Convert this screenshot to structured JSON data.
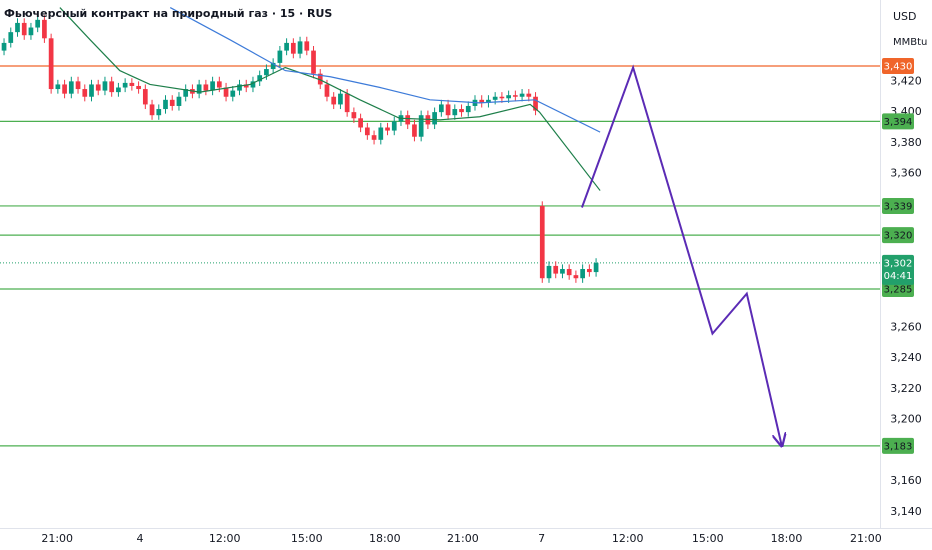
{
  "chart_data": {
    "type": "candlestick",
    "title": "Фьючерсный контракт на природный газ · 15 · RUS",
    "currency": "USD",
    "unit": "MMBtu",
    "xlim": [
      -0.6,
      130.2
    ],
    "ylim": [
      3.1296,
      3.4729
    ],
    "xticks": [
      {
        "value": 7.9,
        "label": "21:00"
      },
      {
        "value": 20.2,
        "label": "4"
      },
      {
        "value": 32.8,
        "label": "12:00"
      },
      {
        "value": 45.0,
        "label": "15:00"
      },
      {
        "value": 56.6,
        "label": "18:00"
      },
      {
        "value": 68.2,
        "label": "21:00"
      },
      {
        "value": 79.9,
        "label": "7"
      },
      {
        "value": 92.7,
        "label": "12:00"
      },
      {
        "value": 104.6,
        "label": "15:00"
      },
      {
        "value": 116.3,
        "label": "18:00"
      },
      {
        "value": 128.1,
        "label": "21:00"
      }
    ],
    "yticks": [
      {
        "value": 3.42,
        "label": "3,420"
      },
      {
        "value": 3.4,
        "label": "3,400"
      },
      {
        "value": 3.38,
        "label": "3,380"
      },
      {
        "value": 3.36,
        "label": "3,360"
      },
      {
        "value": 3.26,
        "label": "3,260"
      },
      {
        "value": 3.24,
        "label": "3,240"
      },
      {
        "value": 3.22,
        "label": "3,220"
      },
      {
        "value": 3.2,
        "label": "3,200"
      },
      {
        "value": 3.16,
        "label": "3,160"
      },
      {
        "value": 3.14,
        "label": "3,140"
      }
    ],
    "up_color": "#089981",
    "down_color": "#f23645",
    "open": [
      3.44,
      3.445,
      3.452,
      3.458,
      3.45,
      3.455,
      3.46,
      3.448,
      3.415,
      3.418,
      3.412,
      3.42,
      3.415,
      3.41,
      3.418,
      3.414,
      3.42,
      3.413,
      3.416,
      3.419,
      3.417,
      3.415,
      3.405,
      3.398,
      3.402,
      3.408,
      3.404,
      3.41,
      3.415,
      3.412,
      3.418,
      3.414,
      3.42,
      3.416,
      3.41,
      3.414,
      3.418,
      3.416,
      3.42,
      3.424,
      3.428,
      3.432,
      3.44,
      3.445,
      3.438,
      3.446,
      3.44,
      3.425,
      3.418,
      3.41,
      3.405,
      3.412,
      3.4,
      3.396,
      3.39,
      3.385,
      3.382,
      3.39,
      3.388,
      3.394,
      3.398,
      3.392,
      3.384,
      3.398,
      3.392,
      3.4,
      3.405,
      3.398,
      3.402,
      3.4,
      3.404,
      3.408,
      3.406,
      3.408,
      3.41,
      3.409,
      3.411,
      3.41,
      3.412,
      3.41,
      3.339,
      3.292,
      3.3,
      3.295,
      3.298,
      3.294,
      3.292,
      3.298,
      3.296
    ],
    "high": [
      3.448,
      3.455,
      3.461,
      3.461,
      3.458,
      3.463,
      3.463,
      3.451,
      3.421,
      3.421,
      3.423,
      3.423,
      3.418,
      3.421,
      3.421,
      3.423,
      3.423,
      3.419,
      3.422,
      3.422,
      3.42,
      3.418,
      3.408,
      3.405,
      3.411,
      3.411,
      3.413,
      3.418,
      3.418,
      3.421,
      3.421,
      3.423,
      3.423,
      3.419,
      3.417,
      3.421,
      3.421,
      3.423,
      3.427,
      3.431,
      3.435,
      3.443,
      3.448,
      3.448,
      3.449,
      3.449,
      3.443,
      3.428,
      3.421,
      3.413,
      3.415,
      3.415,
      3.403,
      3.399,
      3.393,
      3.388,
      3.393,
      3.393,
      3.397,
      3.401,
      3.401,
      3.395,
      3.401,
      3.401,
      3.403,
      3.408,
      3.408,
      3.405,
      3.405,
      3.407,
      3.411,
      3.411,
      3.411,
      3.413,
      3.413,
      3.414,
      3.414,
      3.415,
      3.415,
      3.413,
      3.342,
      3.303,
      3.303,
      3.301,
      3.301,
      3.297,
      3.301,
      3.301,
      3.305
    ],
    "low": [
      3.437,
      3.442,
      3.449,
      3.447,
      3.447,
      3.452,
      3.445,
      3.412,
      3.412,
      3.409,
      3.409,
      3.412,
      3.407,
      3.407,
      3.411,
      3.411,
      3.41,
      3.41,
      3.413,
      3.414,
      3.412,
      3.402,
      3.395,
      3.395,
      3.399,
      3.401,
      3.401,
      3.407,
      3.409,
      3.409,
      3.411,
      3.411,
      3.413,
      3.407,
      3.407,
      3.411,
      3.413,
      3.413,
      3.417,
      3.421,
      3.425,
      3.429,
      3.437,
      3.435,
      3.435,
      3.437,
      3.422,
      3.415,
      3.407,
      3.402,
      3.402,
      3.397,
      3.393,
      3.387,
      3.382,
      3.379,
      3.379,
      3.385,
      3.385,
      3.391,
      3.389,
      3.381,
      3.381,
      3.389,
      3.389,
      3.397,
      3.395,
      3.395,
      3.397,
      3.397,
      3.401,
      3.403,
      3.403,
      3.405,
      3.406,
      3.406,
      3.407,
      3.407,
      3.407,
      3.398,
      3.289,
      3.289,
      3.292,
      3.292,
      3.291,
      3.289,
      3.289,
      3.293,
      3.293
    ],
    "close": [
      3.445,
      3.452,
      3.458,
      3.45,
      3.455,
      3.46,
      3.448,
      3.415,
      3.418,
      3.412,
      3.42,
      3.415,
      3.41,
      3.418,
      3.414,
      3.42,
      3.413,
      3.416,
      3.419,
      3.417,
      3.415,
      3.405,
      3.398,
      3.402,
      3.408,
      3.404,
      3.41,
      3.415,
      3.412,
      3.418,
      3.414,
      3.42,
      3.416,
      3.41,
      3.414,
      3.418,
      3.416,
      3.42,
      3.424,
      3.428,
      3.432,
      3.44,
      3.445,
      3.438,
      3.446,
      3.44,
      3.425,
      3.418,
      3.41,
      3.405,
      3.412,
      3.4,
      3.396,
      3.39,
      3.385,
      3.382,
      3.39,
      3.388,
      3.394,
      3.398,
      3.392,
      3.384,
      3.398,
      3.392,
      3.4,
      3.405,
      3.398,
      3.402,
      3.4,
      3.404,
      3.408,
      3.406,
      3.408,
      3.41,
      3.409,
      3.411,
      3.41,
      3.412,
      3.41,
      3.401,
      3.292,
      3.3,
      3.295,
      3.298,
      3.294,
      3.292,
      3.298,
      3.296,
      3.302
    ],
    "lines": [
      {
        "color": "#1e7f4a",
        "x": [
          8.3,
          12.8,
          17.2,
          21.7,
          29.1,
          36.6,
          41.8,
          47.0,
          52.9,
          58.8,
          64.8,
          70.7,
          78.2,
          79.6,
          88.6
        ],
        "values": [
          3.468,
          3.447,
          3.427,
          3.418,
          3.413,
          3.418,
          3.429,
          3.421,
          3.408,
          3.396,
          3.395,
          3.397,
          3.405,
          3.4,
          3.349
        ]
      },
      {
        "color": "#3d7bd9",
        "x": [
          24.7,
          33.6,
          41.8,
          48.5,
          55.9,
          63.3,
          70.7,
          78.9,
          88.6
        ],
        "values": [
          3.468,
          3.447,
          3.427,
          3.423,
          3.416,
          3.408,
          3.406,
          3.408,
          3.387
        ]
      }
    ],
    "forecast": {
      "color": "#5b2bb5",
      "x": [
        85.9,
        93.5,
        105.3,
        110.4,
        115.6
      ],
      "values": [
        3.338,
        3.429,
        3.256,
        3.282,
        3.183
      ]
    },
    "levels": [
      {
        "value": 3.43,
        "label": "3,430",
        "color": "#f0652a"
      },
      {
        "value": 3.394,
        "label": "3,394",
        "color": "#4caf50"
      },
      {
        "value": 3.339,
        "label": "3,339",
        "color": "#4caf50"
      },
      {
        "value": 3.32,
        "label": "3,320",
        "color": "#4caf50"
      },
      {
        "value": 3.285,
        "label": "3,285",
        "color": "#4caf50"
      },
      {
        "value": 3.183,
        "label": "3,183",
        "color": "#4caf50"
      }
    ],
    "last": {
      "value": 3.302,
      "label": "3,302",
      "timer": "04:41",
      "color": "#22a06b"
    }
  }
}
